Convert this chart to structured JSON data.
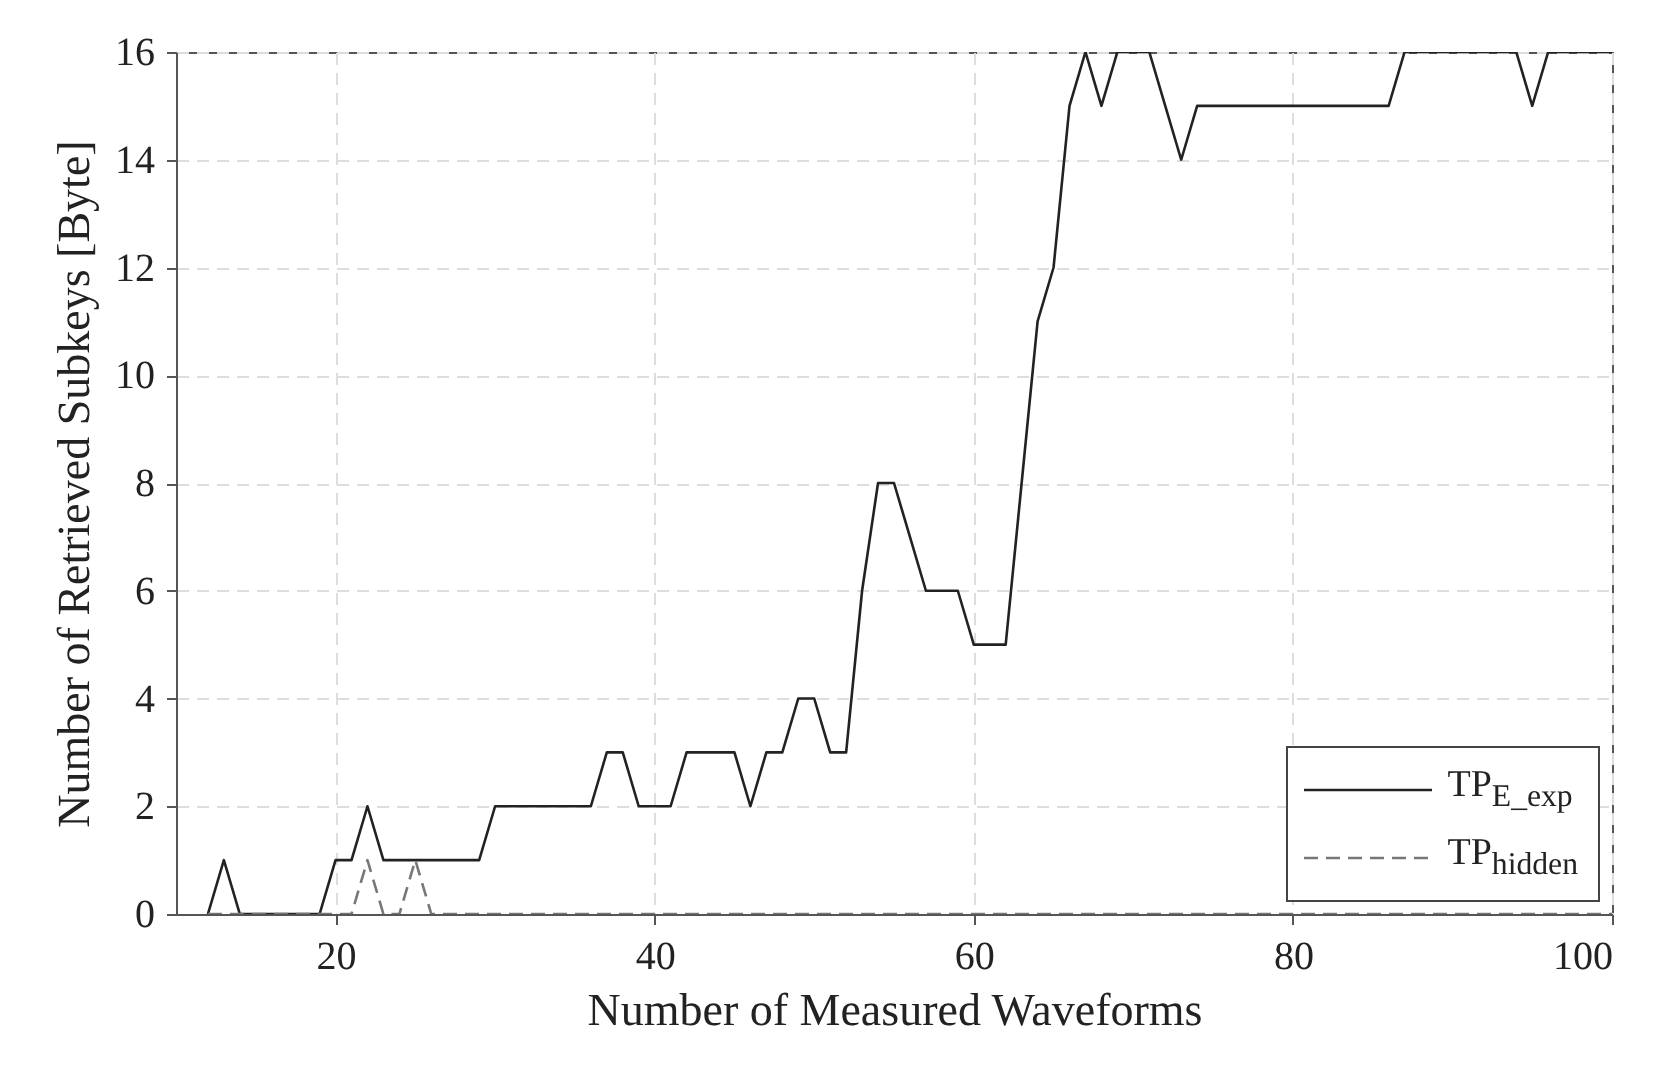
{
  "chart_data": {
    "type": "line",
    "xlabel": "Number of Measured Waveforms",
    "ylabel": "Number of Retrieved Subkeys [Byte]",
    "x": [
      12,
      13,
      14,
      15,
      16,
      17,
      18,
      19,
      20,
      21,
      22,
      23,
      24,
      25,
      26,
      27,
      28,
      29,
      30,
      31,
      32,
      33,
      34,
      35,
      36,
      37,
      38,
      39,
      40,
      41,
      42,
      43,
      44,
      45,
      46,
      47,
      48,
      49,
      50,
      51,
      52,
      53,
      54,
      55,
      56,
      57,
      58,
      59,
      60,
      61,
      62,
      63,
      64,
      65,
      66,
      67,
      68,
      69,
      70,
      71,
      72,
      73,
      74,
      75,
      76,
      77,
      78,
      79,
      80,
      81,
      82,
      83,
      84,
      85,
      86,
      87,
      88,
      89,
      90,
      91,
      92,
      93,
      94,
      95,
      96,
      97,
      98,
      99,
      100
    ],
    "series": [
      {
        "name": "TP$_{E_exp}$",
        "color": "#222222",
        "line_style": "solid",
        "values": [
          0,
          1,
          0,
          0,
          0,
          0,
          0,
          0,
          1,
          1,
          2,
          1,
          1,
          1,
          1,
          1,
          1,
          1,
          2,
          2,
          2,
          2,
          2,
          2,
          2,
          3,
          3,
          2,
          2,
          2,
          3,
          3,
          3,
          3,
          2,
          3,
          3,
          4,
          4,
          3,
          3,
          6,
          8,
          8,
          7,
          6,
          6,
          6,
          5,
          5,
          5,
          8,
          11,
          12,
          15,
          16,
          15,
          16,
          16,
          16,
          15,
          14,
          15,
          15,
          15,
          15,
          15,
          15,
          15,
          15,
          15,
          15,
          15,
          15,
          15,
          16,
          16,
          16,
          16,
          16,
          16,
          16,
          16,
          15,
          16,
          16,
          16,
          16,
          16
        ]
      },
      {
        "name": "TP$_{hidden}$",
        "color": "#777777",
        "line_style": "dashed",
        "values": [
          0,
          0,
          0,
          0,
          0,
          0,
          0,
          0,
          0,
          0,
          1,
          0,
          0,
          1,
          0,
          0,
          0,
          0,
          0,
          0,
          0,
          0,
          0,
          0,
          0,
          0,
          0,
          0,
          0,
          0,
          0,
          0,
          0,
          0,
          0,
          0,
          0,
          0,
          0,
          0,
          0,
          0,
          0,
          0,
          0,
          0,
          0,
          0,
          0,
          0,
          0,
          0,
          0,
          0,
          0,
          0,
          0,
          0,
          0,
          0,
          0,
          0,
          0,
          0,
          0,
          0,
          0,
          0,
          0,
          0,
          0,
          0,
          0,
          0,
          0,
          0,
          0,
          0,
          0,
          0,
          0,
          0,
          0,
          0,
          0,
          0,
          0,
          0,
          0
        ]
      }
    ],
    "xlim": [
      10,
      100
    ],
    "xticks": [
      20,
      40,
      60,
      80,
      100
    ],
    "ylim": [
      0,
      16
    ],
    "yticks": [
      0,
      2,
      4,
      6,
      8,
      10,
      12,
      14,
      16
    ],
    "grid": true,
    "legend": "bottom right"
  }
}
